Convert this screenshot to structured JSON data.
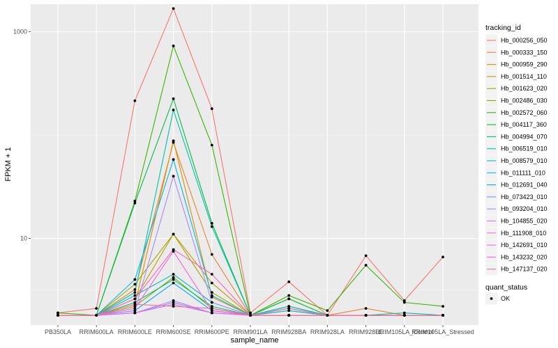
{
  "chart_data": {
    "type": "line",
    "title": "",
    "xlabel": "sample_name",
    "ylabel": "FPKM + 1",
    "y_scale": "log10",
    "ylim": [
      1.45,
      1850
    ],
    "y_ticks": [
      {
        "value": 10,
        "label": "10"
      },
      {
        "value": 1000,
        "label": "1000"
      }
    ],
    "grid": true,
    "legend_position": "right",
    "categories": [
      "PB350LA",
      "RRIM600LA",
      "RRIM600LE",
      "RRIM600SE",
      "RRIM600PE",
      "RRIM901LA",
      "RRIM928BA",
      "RRIM928LA",
      "RRIM928LE",
      "RRIM105LA_Control",
      "RRIM105LA_Stressed"
    ],
    "legend_title": "tracking_id",
    "series": [
      {
        "name": "Hb_000256_050",
        "color": "#F8766D",
        "values": [
          1.9,
          2.1,
          215,
          1680,
          180,
          1.9,
          3.8,
          1.8,
          6.8,
          2.5,
          6.6
        ]
      },
      {
        "name": "Hb_000333_150",
        "color": "#EA8331",
        "values": [
          1.8,
          1.8,
          3.2,
          85,
          7.0,
          1.8,
          2.6,
          1.8,
          2.1,
          1.8,
          1.8
        ]
      },
      {
        "name": "Hb_000959_290",
        "color": "#D89000",
        "values": [
          1.8,
          1.8,
          2.3,
          88,
          2.7,
          1.8,
          1.8,
          1.8,
          1.8,
          1.8,
          1.8
        ]
      },
      {
        "name": "Hb_001514_110",
        "color": "#C09B00",
        "values": [
          1.8,
          1.8,
          2.6,
          11,
          3.7,
          1.8,
          1.8,
          1.8,
          1.8,
          1.8,
          1.8
        ]
      },
      {
        "name": "Hb_001623_020",
        "color": "#A3A500",
        "values": [
          1.8,
          1.8,
          3.6,
          11,
          3.0,
          1.8,
          2.0,
          1.8,
          1.8,
          1.8,
          1.8
        ]
      },
      {
        "name": "Hb_002486_030",
        "color": "#7CAE00",
        "values": [
          1.8,
          1.8,
          2.2,
          4.2,
          2.1,
          1.8,
          1.8,
          1.8,
          1.8,
          1.8,
          1.8
        ]
      },
      {
        "name": "Hb_002572_060",
        "color": "#39B600",
        "values": [
          1.9,
          1.8,
          23,
          730,
          80,
          1.8,
          2.8,
          2.0,
          5.5,
          2.4,
          2.2
        ]
      },
      {
        "name": "Hb_004117_360",
        "color": "#00BB4E",
        "values": [
          1.8,
          1.8,
          22,
          225,
          14,
          1.8,
          2.6,
          1.8,
          1.8,
          1.8,
          1.8
        ]
      },
      {
        "name": "Hb_004994_070",
        "color": "#00BF7D",
        "values": [
          1.8,
          1.8,
          2.4,
          4.0,
          2.2,
          1.8,
          2.2,
          1.8,
          1.8,
          1.8,
          1.8
        ]
      },
      {
        "name": "Hb_006519_010",
        "color": "#00C1A3",
        "values": [
          1.8,
          1.8,
          3.0,
          175,
          13,
          1.8,
          2.2,
          1.8,
          1.8,
          1.9,
          1.8
        ]
      },
      {
        "name": "Hb_008579_010",
        "color": "#00BFC4",
        "values": [
          1.8,
          1.8,
          2.8,
          4.5,
          2.4,
          1.8,
          2.0,
          1.8,
          1.8,
          1.8,
          1.8
        ]
      },
      {
        "name": "Hb_011111_010",
        "color": "#00B8E7",
        "values": [
          1.8,
          1.8,
          4.0,
          58,
          2.8,
          1.8,
          2.1,
          1.8,
          1.8,
          1.8,
          1.8
        ]
      },
      {
        "name": "Hb_012691_040",
        "color": "#00A9FF",
        "values": [
          1.8,
          1.8,
          2.0,
          3.7,
          2.0,
          1.8,
          1.8,
          1.8,
          1.8,
          1.8,
          1.8
        ]
      },
      {
        "name": "Hb_073423_010",
        "color": "#619CFF",
        "values": [
          1.8,
          1.8,
          1.9,
          2.4,
          1.9,
          1.8,
          1.8,
          1.8,
          1.8,
          1.8,
          1.8
        ]
      },
      {
        "name": "Hb_093204_010",
        "color": "#A58AFF",
        "values": [
          1.8,
          1.8,
          2.0,
          40,
          2.4,
          1.8,
          1.8,
          1.8,
          1.8,
          1.8,
          1.8
        ]
      },
      {
        "name": "Hb_104855_020",
        "color": "#C77CFF",
        "values": [
          1.8,
          1.8,
          1.9,
          2.5,
          1.9,
          1.8,
          1.8,
          1.8,
          1.8,
          1.8,
          1.8
        ]
      },
      {
        "name": "Hb_111908_010",
        "color": "#E76BF3",
        "values": [
          1.8,
          1.8,
          1.9,
          2.3,
          1.9,
          1.8,
          1.8,
          1.8,
          1.8,
          1.8,
          1.8
        ]
      },
      {
        "name": "Hb_142691_010",
        "color": "#FA62DB",
        "values": [
          1.8,
          1.8,
          2.1,
          7.5,
          2.0,
          1.8,
          1.8,
          1.8,
          1.8,
          1.8,
          1.8
        ]
      },
      {
        "name": "Hb_143232_020",
        "color": "#FF62BC",
        "values": [
          1.8,
          1.8,
          2.6,
          7.8,
          4.5,
          1.8,
          2.1,
          1.8,
          1.8,
          1.8,
          1.8
        ]
      },
      {
        "name": "Hb_147137_020",
        "color": "#FF6C91",
        "values": [
          1.8,
          1.8,
          2.3,
          2.2,
          2.1,
          1.8,
          1.8,
          1.8,
          1.8,
          1.8,
          1.8
        ]
      }
    ],
    "legend2_title": "quant_status",
    "legend2_items": [
      {
        "label": "OK"
      }
    ]
  }
}
